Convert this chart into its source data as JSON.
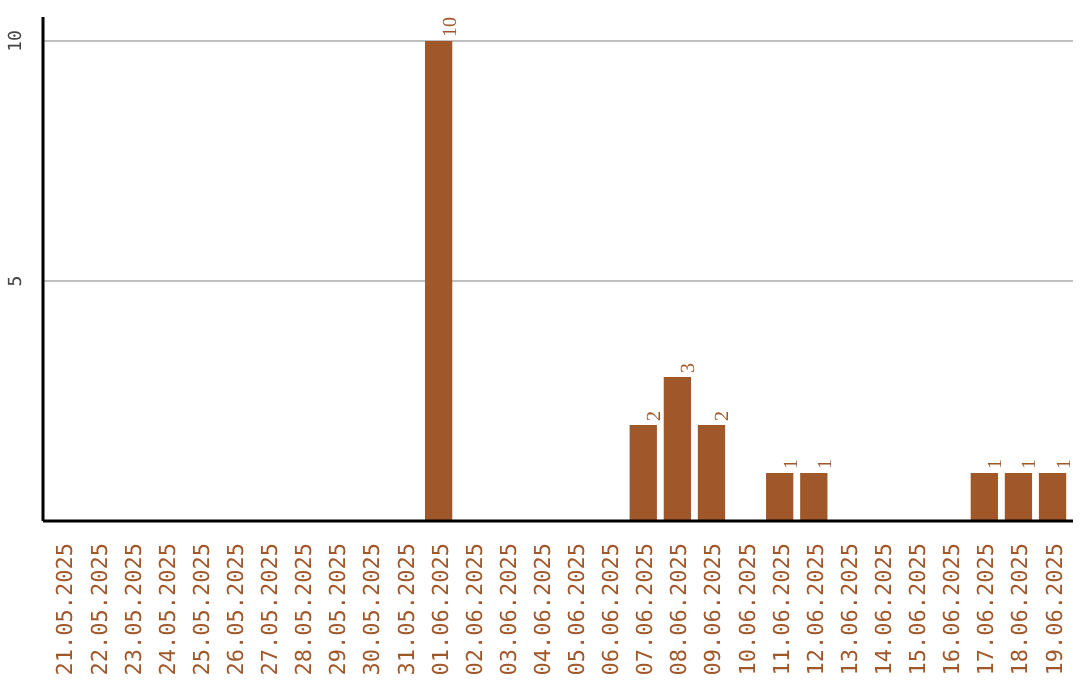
{
  "chart_data": {
    "type": "bar",
    "categories": [
      "21.05.2025",
      "22.05.2025",
      "23.05.2025",
      "24.05.2025",
      "25.05.2025",
      "26.05.2025",
      "27.05.2025",
      "28.05.2025",
      "29.05.2025",
      "30.05.2025",
      "31.05.2025",
      "01.06.2025",
      "02.06.2025",
      "03.06.2025",
      "04.06.2025",
      "05.06.2025",
      "06.06.2025",
      "07.06.2025",
      "08.06.2025",
      "09.06.2025",
      "10.06.2025",
      "11.06.2025",
      "12.06.2025",
      "13.06.2025",
      "14.06.2025",
      "15.06.2025",
      "16.06.2025",
      "17.06.2025",
      "18.06.2025",
      "19.06.2025"
    ],
    "values": [
      0,
      0,
      0,
      0,
      0,
      0,
      0,
      0,
      0,
      0,
      0,
      10,
      0,
      0,
      0,
      0,
      0,
      2,
      3,
      2,
      0,
      1,
      1,
      0,
      0,
      0,
      0,
      1,
      1,
      1
    ],
    "value_labels": [
      null,
      null,
      null,
      null,
      null,
      null,
      null,
      null,
      null,
      null,
      null,
      "10",
      null,
      null,
      null,
      null,
      null,
      "2",
      "3",
      "2",
      null,
      "1",
      "1",
      null,
      null,
      null,
      null,
      "1",
      "1",
      "1"
    ],
    "color": "#a0572a",
    "ylim": [
      0,
      10.5
    ],
    "yticks": [
      5,
      10
    ],
    "grid": "y"
  }
}
